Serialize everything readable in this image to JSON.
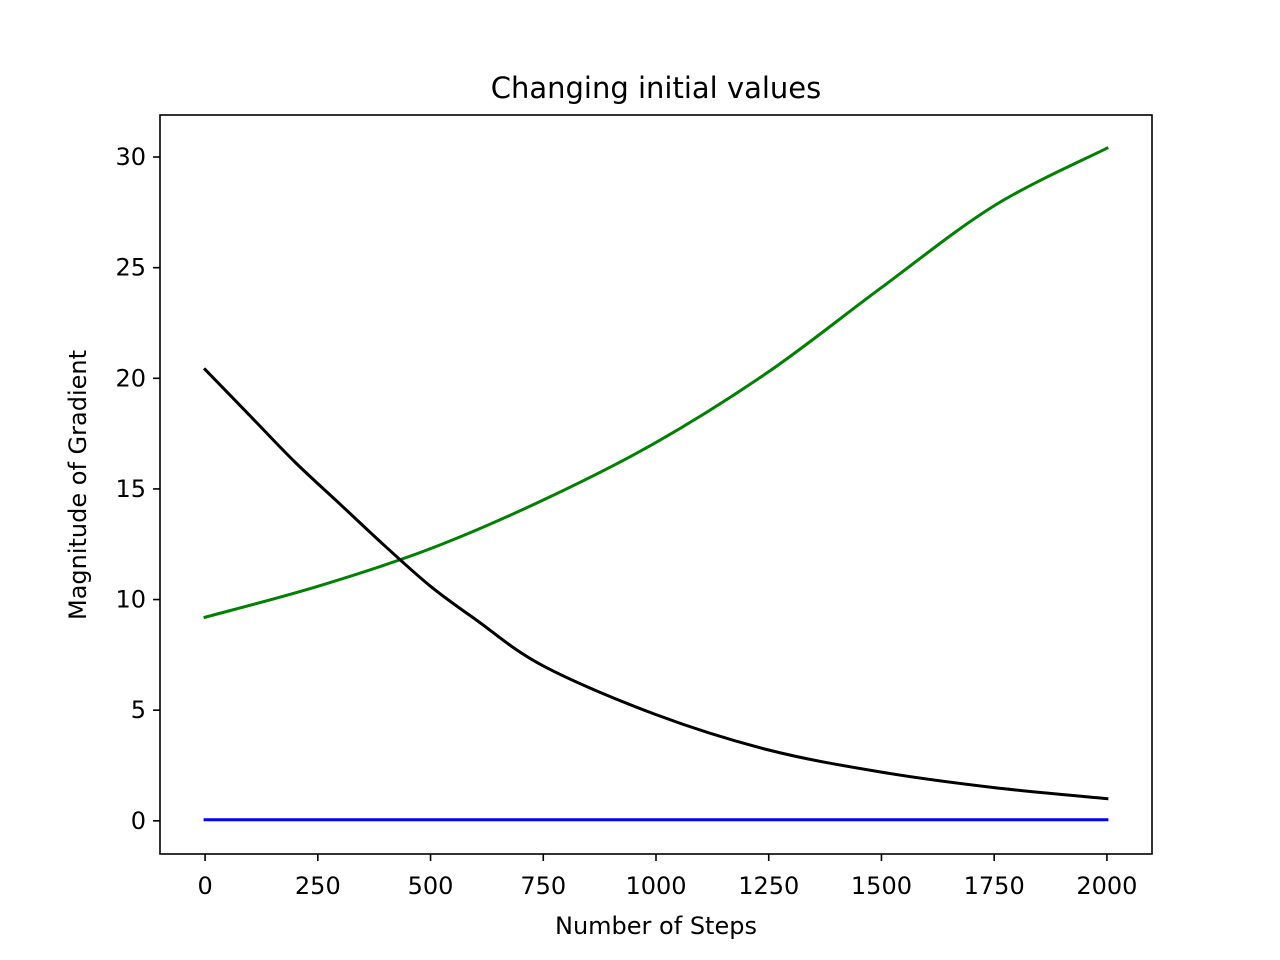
{
  "chart_data": {
    "type": "line",
    "title": "Changing initial values",
    "xlabel": "Number of Steps",
    "ylabel": "Magnitude of Gradient",
    "xlim": [
      -100,
      2100
    ],
    "ylim": [
      -1.5,
      31.9
    ],
    "xticks": [
      0,
      250,
      500,
      750,
      1000,
      1250,
      1500,
      1750,
      2000
    ],
    "yticks": [
      0,
      5,
      10,
      15,
      20,
      25,
      30
    ],
    "grid": false,
    "legend": "none",
    "series": [
      {
        "name": "green",
        "color": "#008000",
        "x": [
          0,
          250,
          500,
          750,
          1000,
          1250,
          1500,
          1750,
          2000
        ],
        "y": [
          9.2,
          10.6,
          12.3,
          14.5,
          17.1,
          20.3,
          24.1,
          27.8,
          30.4
        ]
      },
      {
        "name": "black",
        "color": "#000000",
        "x": [
          0,
          100,
          200,
          300,
          400,
          500,
          600,
          750,
          1000,
          1250,
          1500,
          1750,
          2000
        ],
        "y": [
          20.4,
          18.3,
          16.2,
          14.3,
          12.4,
          10.6,
          9.1,
          7.0,
          4.8,
          3.2,
          2.2,
          1.5,
          1.0
        ]
      },
      {
        "name": "blue",
        "color": "#0000ff",
        "x": [
          0,
          2000
        ],
        "y": [
          0.05,
          0.05
        ]
      }
    ]
  }
}
